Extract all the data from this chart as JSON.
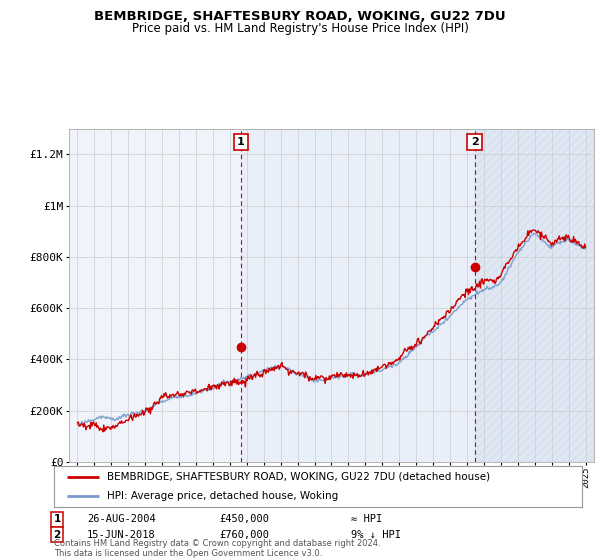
{
  "title": "BEMBRIDGE, SHAFTESBURY ROAD, WOKING, GU22 7DU",
  "subtitle": "Price paid vs. HM Land Registry's House Price Index (HPI)",
  "ylim": [
    0,
    1300000
  ],
  "yticks": [
    0,
    200000,
    400000,
    600000,
    800000,
    1000000,
    1200000
  ],
  "ytick_labels": [
    "£0",
    "£200K",
    "£400K",
    "£600K",
    "£800K",
    "£1M",
    "£1.2M"
  ],
  "sale1_x": 2004.65,
  "sale1_y": 450000,
  "sale1_label": "1",
  "sale1_date": "26-AUG-2004",
  "sale1_price": "£450,000",
  "sale1_hpi": "≈ HPI",
  "sale2_x": 2018.45,
  "sale2_y": 760000,
  "sale2_label": "2",
  "sale2_date": "15-JUN-2018",
  "sale2_price": "£760,000",
  "sale2_hpi": "9% ↓ HPI",
  "red_line_color": "#cc0000",
  "blue_line_color": "#7799cc",
  "dashed_line_color": "#cc0000",
  "shade_color": "#dde8f5",
  "hatch_color": "#cccccc",
  "background_color": "#f0f4fa",
  "grid_color": "#cccccc",
  "legend_label1": "BEMBRIDGE, SHAFTESBURY ROAD, WOKING, GU22 7DU (detached house)",
  "legend_label2": "HPI: Average price, detached house, Woking",
  "footer": "Contains HM Land Registry data © Crown copyright and database right 2024.\nThis data is licensed under the Open Government Licence v3.0.",
  "xmin": 1995,
  "xmax": 2025
}
